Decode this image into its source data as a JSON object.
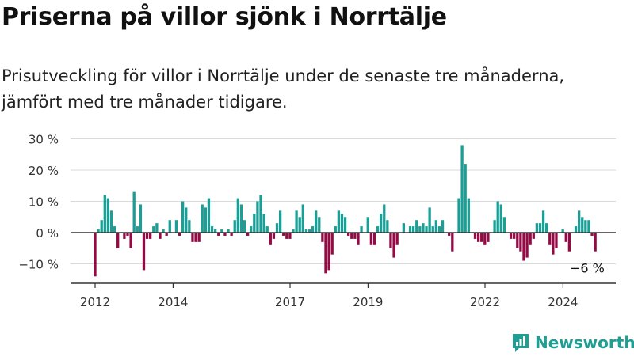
{
  "title": "Priserna på villor sjönk i Norrtälje",
  "subtitle": "Prisutveckling för villor i Norrtälje under de senaste tre månaderna, jämfört med tre månader tidigare.",
  "brand": {
    "name": "Newsworthy",
    "icon": "newsworthy-logo-icon"
  },
  "colors": {
    "positive": "#1a9e95",
    "negative": "#930a45",
    "grid": "#d9d9d9",
    "axis": "#333333",
    "brand": "#1f9e94"
  },
  "chart_data": {
    "type": "bar",
    "title": "Priserna på villor sjönk i Norrtälje",
    "xlabel": "",
    "ylabel": "",
    "ylim": [
      -15,
      32
    ],
    "xlim": [
      2011.5,
      2025.3
    ],
    "y_ticks": [
      30,
      20,
      10,
      0,
      -10
    ],
    "y_tick_labels": [
      "30 %",
      "20 %",
      "10 %",
      "0 %",
      "−10 %"
    ],
    "x_ticks": [
      2012,
      2014,
      2017,
      2019,
      2022,
      2024
    ],
    "x_tick_labels": [
      "2012",
      "2014",
      "2017",
      "2019",
      "2022",
      "2024"
    ],
    "annotation": {
      "text": "−6 %",
      "x": 2024.58,
      "y": -6
    },
    "start": 2012.0,
    "step": 0.0833,
    "values": [
      -14,
      1,
      4,
      12,
      11,
      7,
      2,
      -5,
      0,
      -2,
      -1,
      -5,
      13,
      2,
      9,
      -12,
      -2,
      -2,
      2,
      3,
      -2,
      1,
      -1,
      4,
      0,
      4,
      -1,
      10,
      8,
      4,
      -3,
      -3,
      -3,
      9,
      8,
      11,
      2,
      1,
      -1,
      1,
      -1,
      1,
      -1,
      4,
      11,
      9,
      4,
      -1,
      2,
      6,
      10,
      12,
      6,
      2,
      -4,
      -2,
      3,
      7,
      -1,
      -2,
      -2,
      1,
      7,
      5,
      9,
      1,
      1,
      2,
      7,
      5,
      -3,
      -13,
      -12,
      -7,
      2,
      7,
      6,
      5,
      -1,
      -2,
      -2,
      -4,
      2,
      0,
      5,
      -4,
      -4,
      2,
      6,
      9,
      4,
      -5,
      -8,
      -4,
      0,
      3,
      0,
      2,
      2,
      4,
      2,
      3,
      2,
      8,
      2,
      4,
      2,
      4,
      0,
      -1,
      -6,
      0,
      11,
      28,
      22,
      11,
      0,
      -2,
      -3,
      -3,
      -4,
      -3,
      0,
      4,
      10,
      9,
      5,
      0,
      -2,
      -2,
      -5,
      -6,
      -9,
      -8,
      -4,
      -2,
      3,
      3,
      7,
      3,
      -4,
      -7,
      -5,
      0,
      1,
      -3,
      -6,
      0,
      2,
      7,
      5,
      4,
      4,
      -1,
      -6
    ]
  }
}
